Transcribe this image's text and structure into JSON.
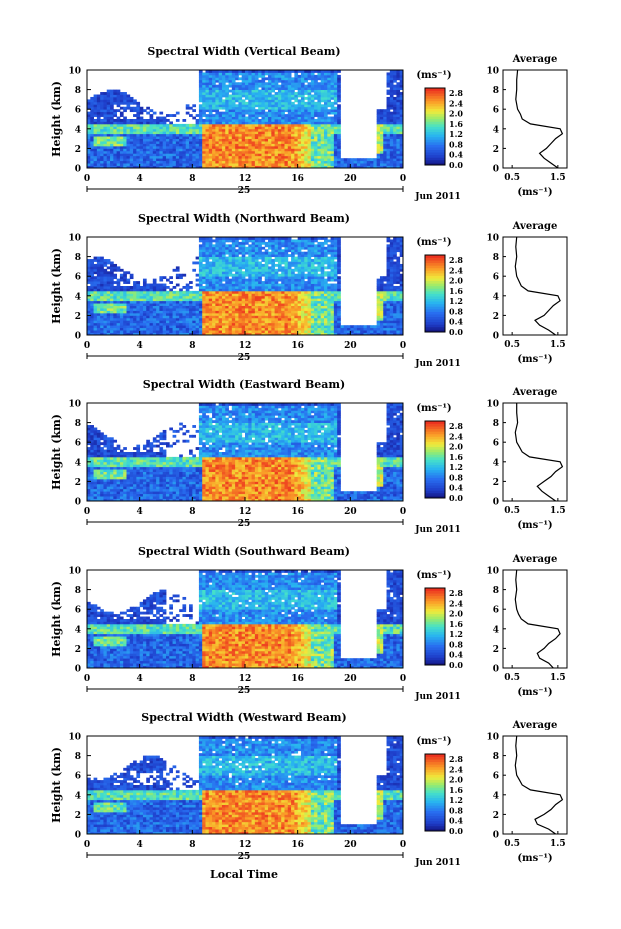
{
  "figure": {
    "x_axis_title": "Local Time",
    "date_label": "Jun 2011",
    "day_label": "25",
    "y_axis_title": "Height (km)",
    "colorbar_unit": "(ms⁻¹)",
    "avg_title": "Average",
    "avg_xlabel": "(ms⁻¹)"
  },
  "chart_data": [
    {
      "type": "heatmap",
      "title": "Spectral Width (Vertical Beam)",
      "xlabel": "Local Time",
      "ylabel": "Height (km)",
      "x_ticks": [
        "0",
        "4",
        "8",
        "12",
        "16",
        "20",
        "0"
      ],
      "y_ticks": [
        "0",
        "2",
        "4",
        "6",
        "8",
        "10"
      ],
      "xlim": [
        0,
        24
      ],
      "ylim": [
        0,
        10
      ],
      "colorbar": {
        "unit": "(ms⁻¹)",
        "ticks": [
          "0.0",
          "0.4",
          "0.8",
          "1.2",
          "1.6",
          "2.0",
          "2.4",
          "2.8"
        ],
        "range": [
          0,
          3.0
        ]
      },
      "avg_profile": {
        "title": "Average",
        "xlabel": "(ms⁻¹)",
        "x_ticks": [
          "0.5",
          "1.5"
        ],
        "xlim": [
          0.3,
          1.7
        ],
        "height": [
          0,
          0.5,
          1,
          1.5,
          2,
          2.5,
          3,
          3.5,
          4,
          4.5,
          5,
          5.5,
          6,
          7,
          8,
          9,
          10
        ],
        "value": [
          1.5,
          1.35,
          1.2,
          1.1,
          1.25,
          1.35,
          1.45,
          1.6,
          1.55,
          0.9,
          0.72,
          0.68,
          0.62,
          0.58,
          0.6,
          0.6,
          0.62
        ]
      }
    },
    {
      "type": "heatmap",
      "title": "Spectral Width (Northward Beam)",
      "xlabel": "Local Time",
      "ylabel": "Height (km)",
      "x_ticks": [
        "0",
        "4",
        "8",
        "12",
        "16",
        "20",
        "0"
      ],
      "y_ticks": [
        "0",
        "2",
        "4",
        "6",
        "8",
        "10"
      ],
      "xlim": [
        0,
        24
      ],
      "ylim": [
        0,
        10
      ],
      "colorbar": {
        "unit": "(ms⁻¹)",
        "ticks": [
          "0.0",
          "0.4",
          "0.8",
          "1.2",
          "1.6",
          "2.0",
          "2.4",
          "2.8"
        ],
        "range": [
          0,
          3.0
        ]
      },
      "avg_profile": {
        "title": "Average",
        "xlabel": "(ms⁻¹)",
        "x_ticks": [
          "0.5",
          "1.5"
        ],
        "xlim": [
          0.3,
          1.7
        ],
        "height": [
          0,
          0.5,
          1,
          1.5,
          2,
          2.5,
          3,
          3.5,
          4,
          4.5,
          5,
          5.5,
          6,
          7,
          8,
          9,
          10
        ],
        "value": [
          1.45,
          1.3,
          1.1,
          1.0,
          1.2,
          1.3,
          1.4,
          1.55,
          1.5,
          0.85,
          0.7,
          0.65,
          0.6,
          0.57,
          0.6,
          0.58,
          0.6
        ]
      }
    },
    {
      "type": "heatmap",
      "title": "Spectral Width (Eastward Beam)",
      "xlabel": "Local Time",
      "ylabel": "Height (km)",
      "x_ticks": [
        "0",
        "4",
        "8",
        "12",
        "16",
        "20",
        "0"
      ],
      "y_ticks": [
        "0",
        "2",
        "4",
        "6",
        "8",
        "10"
      ],
      "xlim": [
        0,
        24
      ],
      "ylim": [
        0,
        10
      ],
      "colorbar": {
        "unit": "(ms⁻¹)",
        "ticks": [
          "0.0",
          "0.4",
          "0.8",
          "1.2",
          "1.6",
          "2.0",
          "2.4",
          "2.8"
        ],
        "range": [
          0,
          3.0
        ]
      },
      "avg_profile": {
        "title": "Average",
        "xlabel": "(ms⁻¹)",
        "x_ticks": [
          "0.5",
          "1.5"
        ],
        "xlim": [
          0.3,
          1.7
        ],
        "height": [
          0,
          0.5,
          1,
          1.5,
          2,
          2.5,
          3,
          3.5,
          4,
          4.5,
          5,
          5.5,
          6,
          7,
          8,
          9,
          10
        ],
        "value": [
          1.45,
          1.3,
          1.15,
          1.05,
          1.2,
          1.35,
          1.45,
          1.6,
          1.55,
          0.88,
          0.72,
          0.66,
          0.6,
          0.57,
          0.62,
          0.6,
          0.6
        ]
      }
    },
    {
      "type": "heatmap",
      "title": "Spectral Width (Southward Beam)",
      "xlabel": "Local Time",
      "ylabel": "Height (km)",
      "x_ticks": [
        "0",
        "4",
        "8",
        "12",
        "16",
        "20",
        "0"
      ],
      "y_ticks": [
        "0",
        "2",
        "4",
        "6",
        "8",
        "10"
      ],
      "xlim": [
        0,
        24
      ],
      "ylim": [
        0,
        10
      ],
      "colorbar": {
        "unit": "(ms⁻¹)",
        "ticks": [
          "0.0",
          "0.4",
          "0.8",
          "1.2",
          "1.6",
          "2.0",
          "2.4",
          "2.8"
        ],
        "range": [
          0,
          3.0
        ]
      },
      "avg_profile": {
        "title": "Average",
        "xlabel": "(ms⁻¹)",
        "x_ticks": [
          "0.5",
          "1.5"
        ],
        "xlim": [
          0.3,
          1.7
        ],
        "height": [
          0,
          0.5,
          1,
          1.5,
          2,
          2.5,
          3,
          3.5,
          4,
          4.5,
          5,
          5.5,
          6,
          7,
          8,
          9,
          10
        ],
        "value": [
          1.4,
          1.3,
          1.1,
          1.05,
          1.2,
          1.3,
          1.45,
          1.55,
          1.5,
          0.85,
          0.7,
          0.64,
          0.6,
          0.57,
          0.6,
          0.58,
          0.6
        ]
      }
    },
    {
      "type": "heatmap",
      "title": "Spectral Width (Westward Beam)",
      "xlabel": "Local Time",
      "ylabel": "Height (km)",
      "x_ticks": [
        "0",
        "4",
        "8",
        "12",
        "16",
        "20",
        "0"
      ],
      "y_ticks": [
        "0",
        "2",
        "4",
        "6",
        "8",
        "10"
      ],
      "xlim": [
        0,
        24
      ],
      "ylim": [
        0,
        10
      ],
      "colorbar": {
        "unit": "(ms⁻¹)",
        "ticks": [
          "0.0",
          "0.4",
          "0.8",
          "1.2",
          "1.6",
          "2.0",
          "2.4",
          "2.8"
        ],
        "range": [
          0,
          3.0
        ]
      },
      "avg_profile": {
        "title": "Average",
        "xlabel": "(ms⁻¹)",
        "x_ticks": [
          "0.5",
          "1.5"
        ],
        "xlim": [
          0.3,
          1.7
        ],
        "height": [
          0,
          0.5,
          1,
          1.5,
          2,
          2.5,
          3,
          3.5,
          4,
          4.5,
          5,
          5.5,
          6,
          7,
          8,
          9,
          10
        ],
        "value": [
          1.45,
          1.3,
          1.05,
          1.0,
          1.2,
          1.35,
          1.45,
          1.6,
          1.55,
          0.9,
          0.72,
          0.66,
          0.6,
          0.57,
          0.6,
          0.58,
          0.6
        ]
      }
    }
  ]
}
